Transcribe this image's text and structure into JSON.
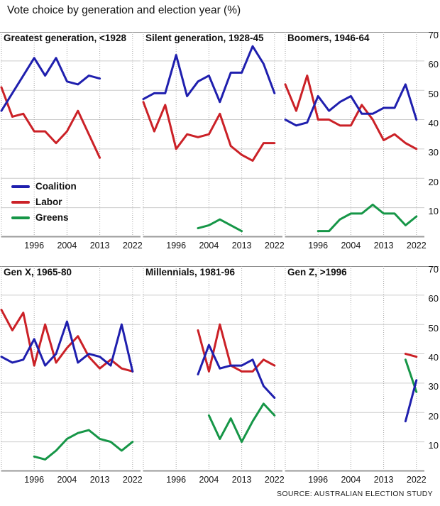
{
  "title": "Vote choice by generation and election year (%)",
  "source": "SOURCE: AUSTRALIAN ELECTION STUDY",
  "colors": {
    "Coalition": "#1f1fae",
    "Labor": "#cb2127",
    "Greens": "#169647",
    "grid": "#cccccc",
    "axis": "#9a9a9a",
    "dotted": "#aaaaaa",
    "text": "#141414"
  },
  "legend": [
    {
      "label": "Coalition",
      "series": "Coalition"
    },
    {
      "label": "Labor",
      "series": "Labor"
    },
    {
      "label": "Greens",
      "series": "Greens"
    }
  ],
  "chart_data": {
    "type": "line",
    "layout": "small-multiples 2x3",
    "elections": [
      1987,
      1990,
      1993,
      1996,
      1998,
      2001,
      2004,
      2007,
      2010,
      2013,
      2016,
      2019,
      2022
    ],
    "x_tick_labels": [
      "1996",
      "2004",
      "2013",
      "2022"
    ],
    "x_tick_years": [
      1996,
      2004,
      2013,
      2022
    ],
    "y_ticks": [
      70,
      60,
      50,
      40,
      30,
      20,
      10
    ],
    "ylim": [
      0,
      70
    ],
    "grid": true,
    "legend_position": "inside first panel, lower left",
    "panels": [
      {
        "title": "Greatest generation, <1928",
        "series": [
          {
            "name": "Coalition",
            "years": [
              1987,
              1990,
              1993,
              1996,
              1998,
              2001,
              2004,
              2007,
              2010,
              2013
            ],
            "values": [
              43,
              49,
              55,
              61,
              55,
              61,
              53,
              52,
              55,
              54
            ]
          },
          {
            "name": "Labor",
            "years": [
              1987,
              1990,
              1993,
              1996,
              1998,
              2001,
              2004,
              2007,
              2010,
              2013
            ],
            "values": [
              51,
              41,
              42,
              36,
              36,
              32,
              36,
              43,
              35,
              27
            ]
          }
        ]
      },
      {
        "title": "Silent generation, 1928-45",
        "series": [
          {
            "name": "Coalition",
            "years": [
              1987,
              1990,
              1993,
              1996,
              1998,
              2001,
              2004,
              2007,
              2010,
              2013,
              2016,
              2019,
              2022
            ],
            "values": [
              47,
              49,
              49,
              62,
              48,
              53,
              55,
              46,
              56,
              56,
              65,
              59,
              49
            ]
          },
          {
            "name": "Labor",
            "years": [
              1987,
              1990,
              1993,
              1996,
              1998,
              2001,
              2004,
              2007,
              2010,
              2013,
              2016,
              2019,
              2022
            ],
            "values": [
              46,
              36,
              45,
              30,
              35,
              34,
              35,
              42,
              31,
              28,
              26,
              32,
              32
            ]
          },
          {
            "name": "Greens",
            "years": [
              2001,
              2004,
              2007,
              2010,
              2013
            ],
            "values": [
              3,
              4,
              6,
              4,
              2
            ]
          }
        ]
      },
      {
        "title": "Boomers, 1946-64",
        "series": [
          {
            "name": "Coalition",
            "years": [
              1987,
              1990,
              1993,
              1996,
              1998,
              2001,
              2004,
              2007,
              2010,
              2013,
              2016,
              2019,
              2022
            ],
            "values": [
              40,
              38,
              39,
              48,
              43,
              46,
              48,
              42,
              42,
              44,
              44,
              52,
              40
            ]
          },
          {
            "name": "Labor",
            "years": [
              1987,
              1990,
              1993,
              1996,
              1998,
              2001,
              2004,
              2007,
              2010,
              2013,
              2016,
              2019,
              2022
            ],
            "values": [
              52,
              43,
              55,
              40,
              40,
              38,
              38,
              45,
              40,
              33,
              35,
              32,
              30
            ]
          },
          {
            "name": "Greens",
            "years": [
              1996,
              1998,
              2001,
              2004,
              2007,
              2010,
              2013,
              2016,
              2019,
              2022
            ],
            "values": [
              2,
              2,
              6,
              8,
              8,
              11,
              8,
              8,
              4,
              7
            ]
          }
        ]
      },
      {
        "title": "Gen X, 1965-80",
        "series": [
          {
            "name": "Coalition",
            "years": [
              1987,
              1990,
              1993,
              1996,
              1998,
              2001,
              2004,
              2007,
              2010,
              2013,
              2016,
              2019,
              2022
            ],
            "values": [
              39,
              37,
              38,
              45,
              36,
              40,
              51,
              37,
              40,
              39,
              36,
              50,
              34
            ]
          },
          {
            "name": "Labor",
            "years": [
              1987,
              1990,
              1993,
              1996,
              1998,
              2001,
              2004,
              2007,
              2010,
              2013,
              2016,
              2019,
              2022
            ],
            "values": [
              55,
              48,
              54,
              36,
              50,
              37,
              42,
              46,
              39,
              35,
              38,
              35,
              34
            ]
          },
          {
            "name": "Greens",
            "years": [
              1996,
              1998,
              2001,
              2004,
              2007,
              2010,
              2013,
              2016,
              2019,
              2022
            ],
            "values": [
              5,
              4,
              7,
              11,
              13,
              14,
              11,
              10,
              7,
              10
            ]
          }
        ]
      },
      {
        "title": "Millennials, 1981-96",
        "series": [
          {
            "name": "Coalition",
            "years": [
              2001,
              2004,
              2007,
              2010,
              2013,
              2016,
              2019,
              2022
            ],
            "values": [
              33,
              43,
              35,
              36,
              36,
              38,
              29,
              25
            ]
          },
          {
            "name": "Labor",
            "years": [
              2001,
              2004,
              2007,
              2010,
              2013,
              2016,
              2019,
              2022
            ],
            "values": [
              48,
              34,
              50,
              36,
              34,
              34,
              38,
              36
            ]
          },
          {
            "name": "Greens",
            "years": [
              2004,
              2007,
              2010,
              2013,
              2016,
              2019,
              2022
            ],
            "values": [
              19,
              11,
              18,
              10,
              17,
              23,
              19
            ]
          }
        ]
      },
      {
        "title": "Gen Z, >1996",
        "series": [
          {
            "name": "Coalition",
            "years": [
              2019,
              2022
            ],
            "values": [
              17,
              31
            ]
          },
          {
            "name": "Labor",
            "years": [
              2019,
              2022
            ],
            "values": [
              40,
              39
            ]
          },
          {
            "name": "Greens",
            "years": [
              2019,
              2022
            ],
            "values": [
              38,
              27
            ]
          }
        ]
      }
    ]
  }
}
